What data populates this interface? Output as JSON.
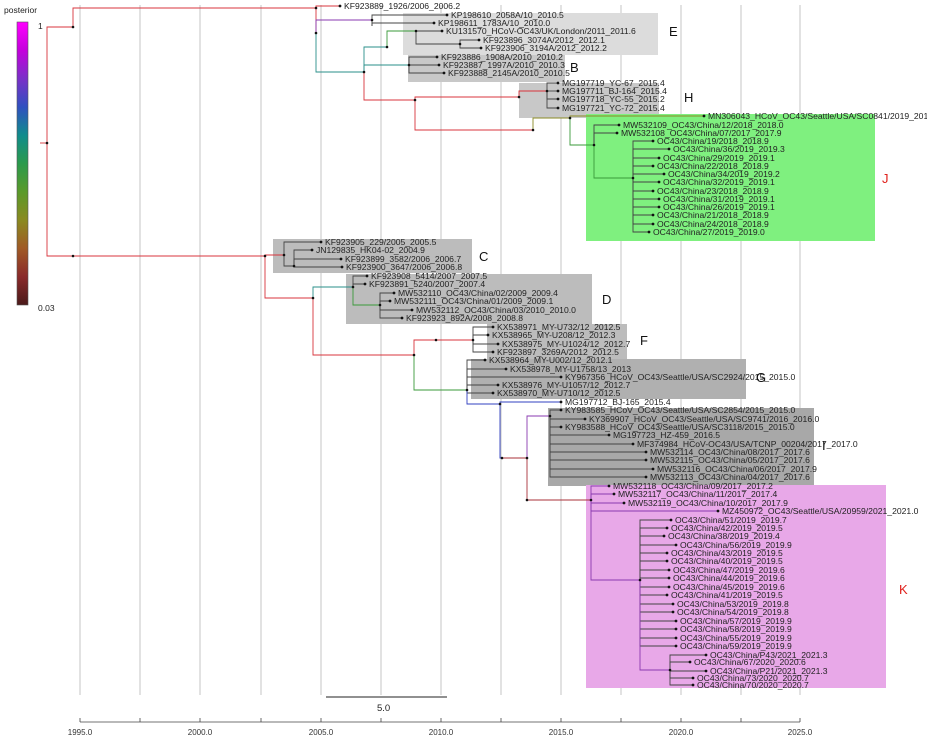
{
  "legend": {
    "title": "posterior",
    "max_label": "1",
    "min_label": "0.03",
    "colors": [
      "#ff00ff",
      "#c400dc",
      "#7a30c8",
      "#3050c0",
      "#108c8c",
      "#2b9a4c",
      "#5a9a2a",
      "#8a8a20",
      "#a05a25",
      "#8a2a2a",
      "#4a1a1a"
    ]
  },
  "scale_bar": {
    "label": "5.0"
  },
  "axis": {
    "ticks": [
      "1995.0",
      "2000.0",
      "2005.0",
      "2010.0",
      "2015.0",
      "2020.0",
      "2025.0"
    ]
  },
  "clades": [
    {
      "label": "E",
      "fill": "#dcdcdc",
      "accent": false
    },
    {
      "label": "B",
      "fill": "#c8c8c8",
      "accent": false
    },
    {
      "label": "H",
      "fill": "#c8c8c8",
      "accent": false
    },
    {
      "label": "J",
      "fill": "#7ff07f",
      "accent": true
    },
    {
      "label": "C",
      "fill": "#bcbcbc",
      "accent": false
    },
    {
      "label": "D",
      "fill": "#bcbcbc",
      "accent": false
    },
    {
      "label": "F",
      "fill": "#bcbcbc",
      "accent": false
    },
    {
      "label": "G",
      "fill": "#b0b0b0",
      "accent": false
    },
    {
      "label": "I",
      "fill": "#a8a8a8",
      "accent": false
    },
    {
      "label": "K",
      "fill": "#e8a8e8",
      "accent": true
    }
  ],
  "leaves": [
    "KF923889_1926/2006_2006.2",
    "KP198610_2058A/10_2010.5",
    "KP198611_1783A/10_2010.0",
    "KU131570_HCoV-OC43/UK/London/2011_2011.6",
    "KF923896_3074A/2012_2012.1",
    "KF923906_3194A/2012_2012.2",
    "KF923886_1908A/2010_2010.2",
    "KF923887_1997A/2010_2010.3",
    "KF923888_2145A/2010_2010.5",
    "MG197719_YC-67_2015.4",
    "MG197711_BJ-164_2015.4",
    "MG197718_YC-55_2015.2",
    "MG197721_YC-72_2015.4",
    "MN306043_HCoV_OC43/Seattle/USA/SC0841/2019_2019.0",
    "MW532109_OC43/China/12/2018_2018.0",
    "MW532108_OC43/China/07/2017_2017.9",
    "OC43/China/19/2018_2018.9",
    "OC43/China/36/2019_2019.3",
    "OC43/China/29/2019_2019.1",
    "OC43/China/22/2018_2018.9",
    "OC43/China/34/2019_2019.2",
    "OC43/China/32/2019_2019.1",
    "OC43/China/23/2018_2018.9",
    "OC43/China/31/2019_2019.1",
    "OC43/China/26/2019_2019.1",
    "OC43/China/21/2018_2018.9",
    "OC43/China/24/2018_2018.9",
    "OC43/China/27/2019_2019.0",
    "KF923905_229/2005_2005.5",
    "JN129835_HK04-02_2004.9",
    "KF923899_3582/2006_2006.7",
    "KF923900_3647/2006_2006.8",
    "KF923908_5414/2007_2007.5",
    "KF923891_5240/2007_2007.4",
    "MW532110_OC43/China/02/2009_2009.4",
    "MW532111_OC43/China/01/2009_2009.1",
    "MW532112_OC43/China/03/2010_2010.0",
    "KF923923_892A/2008_2008.8",
    "KX538971_MY-U732/12_2012.5",
    "KX538965_MY-U208/12_2012.3",
    "KX538975_MY-U1024/12_2012.7",
    "KF923897_3269A/2012_2012.5",
    "KX538964_MY-U002/12_2012.1",
    "KX538978_MY-U1758/13_2013",
    "KY967356_HCoV_OC43/Seattle/USA/SC2924/2015_2015.0",
    "KX538976_MY-U1057/12_2012.7",
    "KX538970_MY-U710/12_2012.5",
    "MG197712_BJ-165_2015.4",
    "KY983585_HCoV_OC43/Seattle/USA/SC2854/2015_2015.0",
    "KY369907_HCoV_OC43/Seattle/USA/SC9741/2016_2016.0",
    "KY983588_HCoV_OC43/Seattle/USA/SC3118/2015_2015.0",
    "MG197723_HZ-459_2016.5",
    "MF374984_HCoV-OC43/USA/TCNP_00204/2017_2017.0",
    "MW532114_OC43/China/08/2017_2017.6",
    "MW532115_OC43/China/05/2017_2017.6",
    "MW532116_OC43/China/06/2017_2017.9",
    "MW532113_OC43/China/04/2017_2017.6",
    "MW532118_OC43/China/09/2017_2017.2",
    "MW532117_OC43/China/11/2017_2017.4",
    "MW532119_OC43/China/10/2017_2017.9",
    "MZ450972_OC43/Seattle/USA/20959/2021_2021.0",
    "OC43/China/51/2019_2019.7",
    "OC43/China/42/2019_2019.5",
    "OC43/China/38/2019_2019.4",
    "OC43/China/56/2019_2019.9",
    "OC43/China/43/2019_2019.5",
    "OC43/China/40/2019_2019.5",
    "OC43/China/47/2019_2019.6",
    "OC43/China/44/2019_2019.6",
    "OC43/China/45/2019_2019.6",
    "OC43/China/41/2019_2019.5",
    "OC43/China/53/2019_2019.8",
    "OC43/China/54/2019_2019.8",
    "OC43/China/57/2019_2019.9",
    "OC43/China/58/2019_2019.9",
    "OC43/China/55/2019_2019.9",
    "OC43/China/59/2019_2019.9",
    "OC43/China/P43/2021_2021.3",
    "OC43/China/67/2020_2020.6",
    "OC43/China/P21/2021_2021.3",
    "OC43/China/73/2020_2020.7",
    "OC43/China/70/2020_2020.7"
  ]
}
